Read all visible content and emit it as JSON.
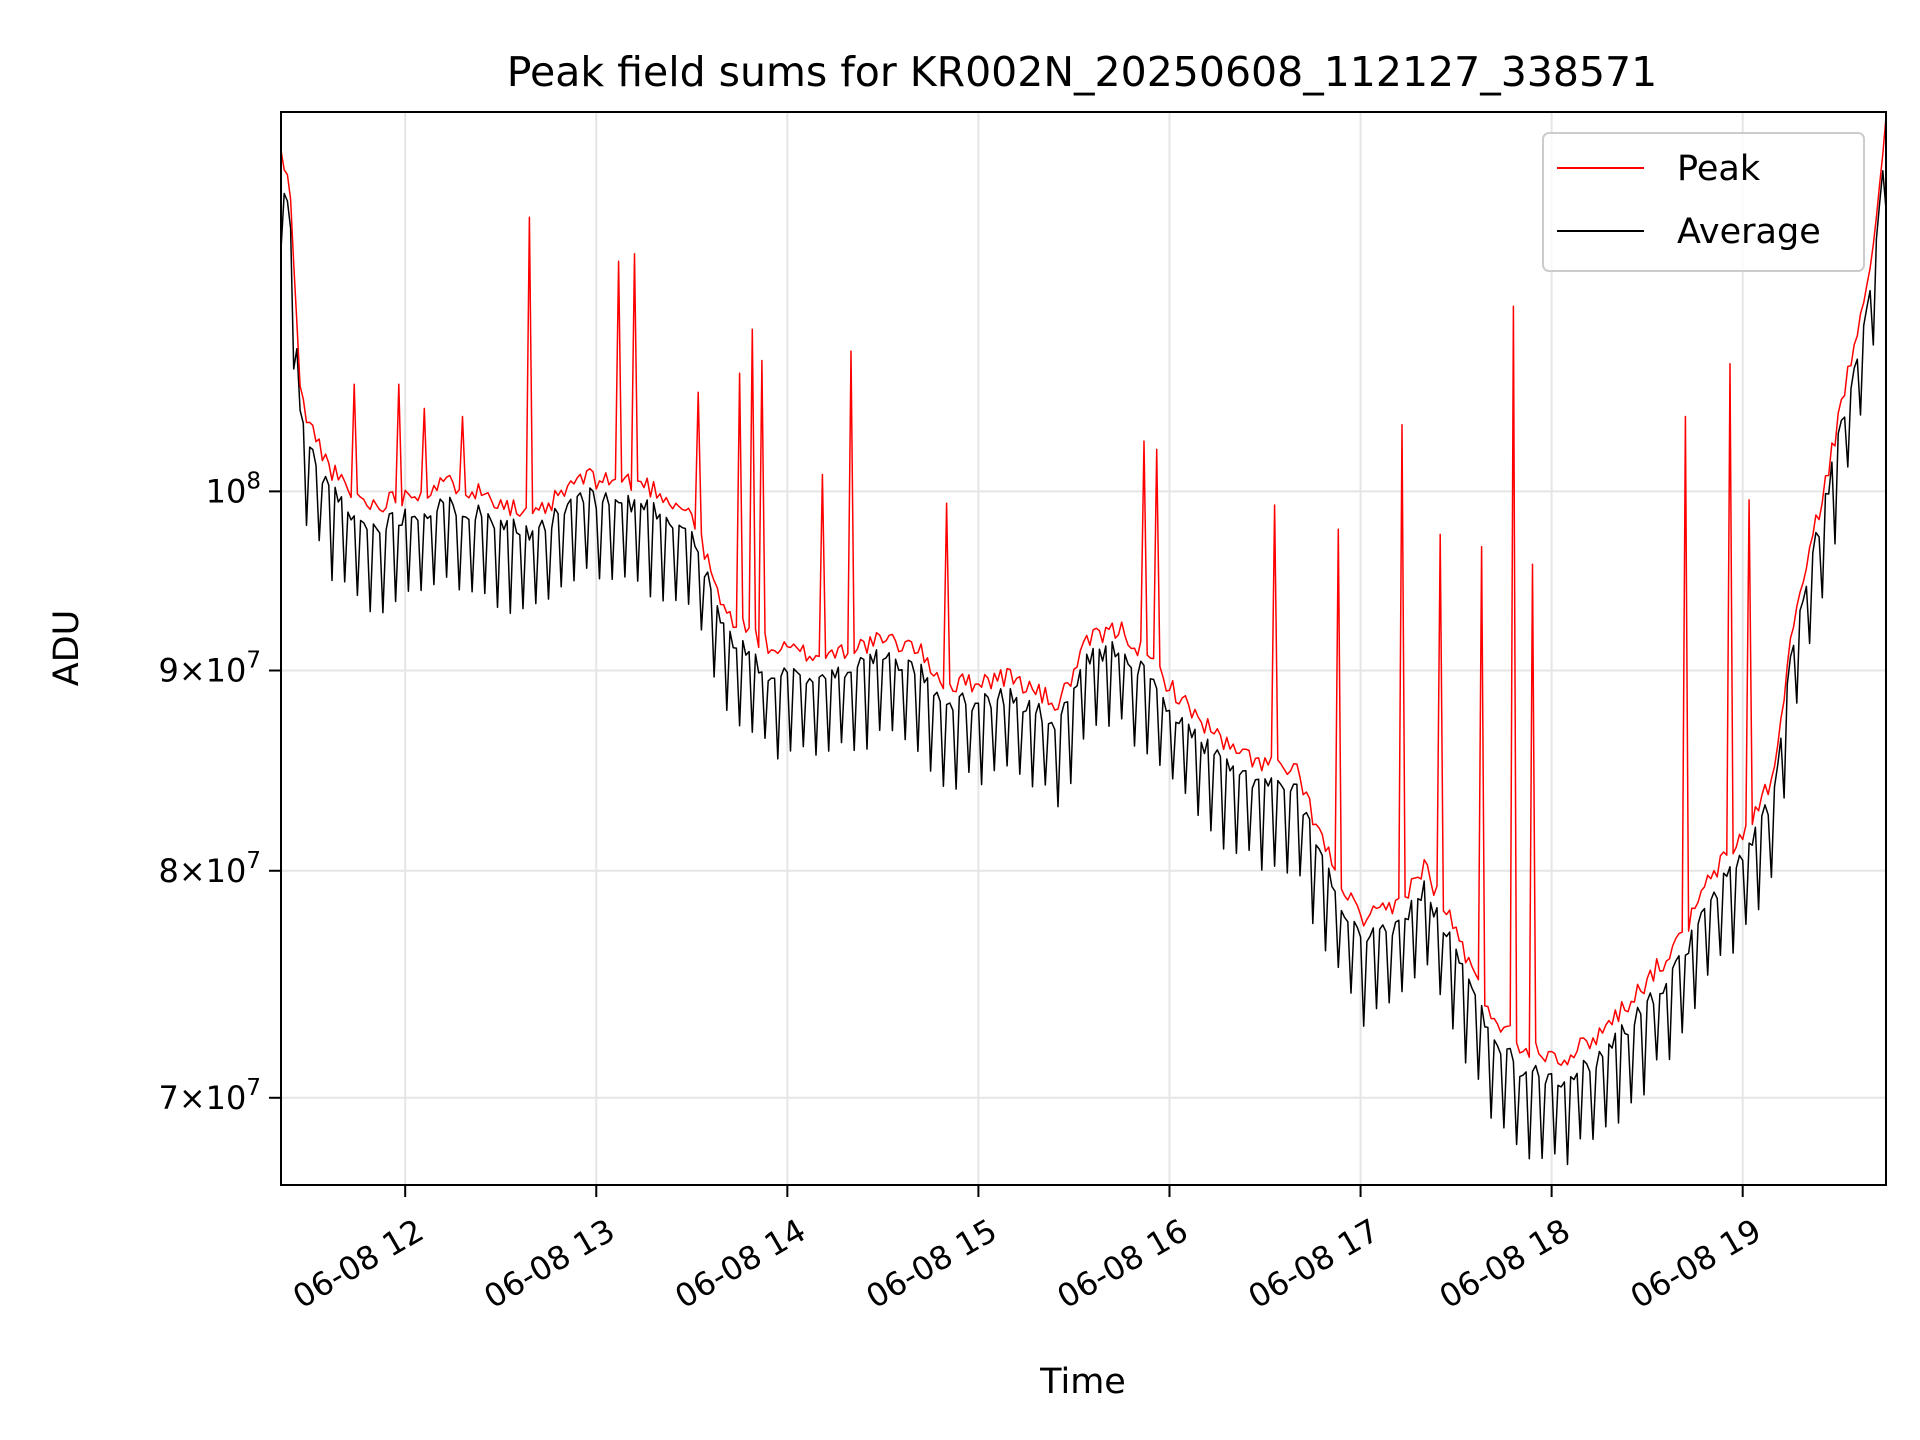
{
  "chart_data": {
    "type": "line",
    "title": "Peak field sums for KR002N_20250608_112127_338571",
    "xlabel": "Time",
    "ylabel": "ADU",
    "yscale": "log",
    "grid": true,
    "legend_position": "upper right",
    "xlim": [
      "2025-06-08 11:21",
      "2025-06-08 19:45"
    ],
    "ylim": [
      66500000,
      125000000
    ],
    "x_ticks": [
      {
        "at": "2025-06-08 12:00",
        "label": "06-08 12"
      },
      {
        "at": "2025-06-08 13:00",
        "label": "06-08 13"
      },
      {
        "at": "2025-06-08 14:00",
        "label": "06-08 14"
      },
      {
        "at": "2025-06-08 15:00",
        "label": "06-08 15"
      },
      {
        "at": "2025-06-08 16:00",
        "label": "06-08 16"
      },
      {
        "at": "2025-06-08 17:00",
        "label": "06-08 17"
      },
      {
        "at": "2025-06-08 18:00",
        "label": "06-08 18"
      },
      {
        "at": "2025-06-08 19:00",
        "label": "06-08 19"
      }
    ],
    "y_ticks": [
      {
        "value": 70000000,
        "mantissa": "7",
        "exponent": "7"
      },
      {
        "value": 80000000,
        "mantissa": "8",
        "exponent": "7"
      },
      {
        "value": 90000000,
        "mantissa": "9",
        "exponent": "7"
      },
      {
        "value": 100000000,
        "mantissa": "",
        "exponent": "8"
      }
    ],
    "series": [
      {
        "name": "Peak",
        "color": "#ff0000",
        "baseline": [
          [
            "2025-06-08 11:21",
            122000000
          ],
          [
            "2025-06-08 11:24",
            119000000
          ],
          [
            "2025-06-08 11:27",
            106000000
          ],
          [
            "2025-06-08 11:30",
            104000000
          ],
          [
            "2025-06-08 11:36",
            101500000
          ],
          [
            "2025-06-08 11:42",
            100000000
          ],
          [
            "2025-06-08 11:50",
            99200000
          ],
          [
            "2025-06-08 12:00",
            99800000
          ],
          [
            "2025-06-08 12:15",
            100500000
          ],
          [
            "2025-06-08 12:30",
            99500000
          ],
          [
            "2025-06-08 12:40",
            98300000
          ],
          [
            "2025-06-08 12:55",
            100800000
          ],
          [
            "2025-06-08 13:15",
            100500000
          ],
          [
            "2025-06-08 13:30",
            98700000
          ],
          [
            "2025-06-08 13:40",
            93200000
          ],
          [
            "2025-06-08 13:55",
            91200000
          ],
          [
            "2025-06-08 14:10",
            90800000
          ],
          [
            "2025-06-08 14:30",
            91600000
          ],
          [
            "2025-06-08 14:40",
            91300000
          ],
          [
            "2025-06-08 14:50",
            89200000
          ],
          [
            "2025-06-08 15:10",
            89700000
          ],
          [
            "2025-06-08 15:25",
            88200000
          ],
          [
            "2025-06-08 15:35",
            91700000
          ],
          [
            "2025-06-08 15:45",
            92200000
          ],
          [
            "2025-06-08 15:55",
            90300000
          ],
          [
            "2025-06-08 16:05",
            88200000
          ],
          [
            "2025-06-08 16:20",
            85800000
          ],
          [
            "2025-06-08 16:40",
            84700000
          ],
          [
            "2025-06-08 16:50",
            80700000
          ],
          [
            "2025-06-08 17:00",
            77700000
          ],
          [
            "2025-06-08 17:10",
            78200000
          ],
          [
            "2025-06-08 17:20",
            80200000
          ],
          [
            "2025-06-08 17:30",
            77200000
          ],
          [
            "2025-06-08 17:40",
            73800000
          ],
          [
            "2025-06-08 17:50",
            72200000
          ],
          [
            "2025-06-08 18:05",
            71700000
          ],
          [
            "2025-06-08 18:15",
            72700000
          ],
          [
            "2025-06-08 18:25",
            74200000
          ],
          [
            "2025-06-08 18:40",
            76700000
          ],
          [
            "2025-06-08 18:50",
            79700000
          ],
          [
            "2025-06-08 19:00",
            81700000
          ],
          [
            "2025-06-08 19:10",
            84700000
          ],
          [
            "2025-06-08 19:15",
            91700000
          ],
          [
            "2025-06-08 19:25",
            99700000
          ],
          [
            "2025-06-08 19:35",
            109000000
          ],
          [
            "2025-06-08 19:42",
            117000000
          ],
          [
            "2025-06-08 19:45",
            124000000
          ]
        ],
        "spikes": [
          [
            "2025-06-08 11:44",
            106500000
          ],
          [
            "2025-06-08 11:58",
            106500000
          ],
          [
            "2025-06-08 12:06",
            105000000
          ],
          [
            "2025-06-08 12:18",
            104500000
          ],
          [
            "2025-06-08 12:39",
            117500000
          ],
          [
            "2025-06-08 13:07",
            114500000
          ],
          [
            "2025-06-08 13:12",
            115000000
          ],
          [
            "2025-06-08 13:32",
            106000000
          ],
          [
            "2025-06-08 13:45",
            107200000
          ],
          [
            "2025-06-08 13:49",
            110000000
          ],
          [
            "2025-06-08 13:52",
            108000000
          ],
          [
            "2025-06-08 14:20",
            108600000
          ],
          [
            "2025-06-08 14:11",
            101000000
          ],
          [
            "2025-06-08 14:50",
            99300000
          ],
          [
            "2025-06-08 15:52",
            103000000
          ],
          [
            "2025-06-08 15:56",
            102500000
          ],
          [
            "2025-06-08 16:33",
            99200000
          ],
          [
            "2025-06-08 16:53",
            97800000
          ],
          [
            "2025-06-08 17:13",
            104000000
          ],
          [
            "2025-06-08 17:25",
            97500000
          ],
          [
            "2025-06-08 17:38",
            96800000
          ],
          [
            "2025-06-08 17:48",
            111500000
          ],
          [
            "2025-06-08 17:54",
            95800000
          ],
          [
            "2025-06-08 18:42",
            104500000
          ],
          [
            "2025-06-08 18:56",
            107800000
          ],
          [
            "2025-06-08 19:02",
            99500000
          ]
        ]
      },
      {
        "name": "Average",
        "color": "#000000",
        "baseline": [
          [
            "2025-06-08 11:21",
            120500000
          ],
          [
            "2025-06-08 11:24",
            117000000
          ],
          [
            "2025-06-08 11:27",
            104500000
          ],
          [
            "2025-06-08 11:30",
            102500000
          ],
          [
            "2025-06-08 11:36",
            100200000
          ],
          [
            "2025-06-08 11:42",
            98700000
          ],
          [
            "2025-06-08 11:50",
            97800000
          ],
          [
            "2025-06-08 12:00",
            98700000
          ],
          [
            "2025-06-08 12:15",
            99200000
          ],
          [
            "2025-06-08 12:30",
            98300000
          ],
          [
            "2025-06-08 12:40",
            97300000
          ],
          [
            "2025-06-08 12:55",
            99700000
          ],
          [
            "2025-06-08 13:15",
            99200000
          ],
          [
            "2025-06-08 13:30",
            97700000
          ],
          [
            "2025-06-08 13:40",
            92200000
          ],
          [
            "2025-06-08 13:55",
            89700000
          ],
          [
            "2025-06-08 14:10",
            89700000
          ],
          [
            "2025-06-08 14:30",
            90700000
          ],
          [
            "2025-06-08 14:40",
            90200000
          ],
          [
            "2025-06-08 14:50",
            88200000
          ],
          [
            "2025-06-08 15:10",
            88700000
          ],
          [
            "2025-06-08 15:25",
            87200000
          ],
          [
            "2025-06-08 15:35",
            90700000
          ],
          [
            "2025-06-08 15:45",
            91200000
          ],
          [
            "2025-06-08 15:55",
            89200000
          ],
          [
            "2025-06-08 16:05",
            87200000
          ],
          [
            "2025-06-08 16:20",
            84700000
          ],
          [
            "2025-06-08 16:40",
            83700000
          ],
          [
            "2025-06-08 16:50",
            79700000
          ],
          [
            "2025-06-08 17:00",
            76700000
          ],
          [
            "2025-06-08 17:10",
            77200000
          ],
          [
            "2025-06-08 17:20",
            79200000
          ],
          [
            "2025-06-08 17:30",
            76200000
          ],
          [
            "2025-06-08 17:40",
            72900000
          ],
          [
            "2025-06-08 17:50",
            71200000
          ],
          [
            "2025-06-08 18:05",
            70800000
          ],
          [
            "2025-06-08 18:15",
            71700000
          ],
          [
            "2025-06-08 18:25",
            73200000
          ],
          [
            "2025-06-08 18:40",
            75700000
          ],
          [
            "2025-06-08 18:50",
            78700000
          ],
          [
            "2025-06-08 19:00",
            80700000
          ],
          [
            "2025-06-08 19:10",
            83700000
          ],
          [
            "2025-06-08 19:15",
            90700000
          ],
          [
            "2025-06-08 19:25",
            98700000
          ],
          [
            "2025-06-08 19:35",
            107500000
          ],
          [
            "2025-06-08 19:42",
            115500000
          ],
          [
            "2025-06-08 19:45",
            123000000
          ]
        ]
      }
    ]
  }
}
